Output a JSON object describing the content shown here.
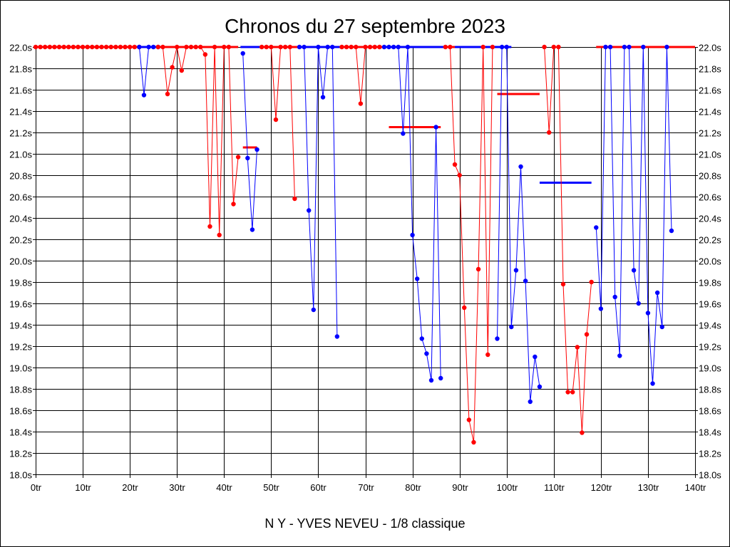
{
  "chart_data": {
    "type": "line",
    "title": "Chronos du 27 septembre 2023",
    "subtitle": "N Y - YVES NEVEU - 1/8 classique",
    "xlim": [
      0,
      140
    ],
    "ylim": [
      18.0,
      22.0
    ],
    "x_tick_step": 10,
    "y_tick_step": 0.2,
    "x_tick_suffix": "tr",
    "y_tick_suffix": "s",
    "grid": true,
    "colors": {
      "red": "#ff0000",
      "blue": "#0000ff",
      "grid": "#000000"
    },
    "series": [
      {
        "color": "red",
        "points": [
          [
            0,
            22.0
          ],
          [
            1,
            22.0
          ],
          [
            2,
            22.0
          ],
          [
            3,
            22.0
          ],
          [
            4,
            22.0
          ],
          [
            5,
            22.0
          ],
          [
            6,
            22.0
          ],
          [
            7,
            22.0
          ],
          [
            8,
            22.0
          ],
          [
            9,
            22.0
          ],
          [
            10,
            22.0
          ],
          [
            11,
            22.0
          ],
          [
            12,
            22.0
          ],
          [
            13,
            22.0
          ],
          [
            14,
            22.0
          ],
          [
            15,
            22.0
          ],
          [
            16,
            22.0
          ],
          [
            17,
            22.0
          ],
          [
            18,
            22.0
          ],
          [
            19,
            22.0
          ],
          [
            20,
            22.0
          ],
          [
            21,
            22.0
          ],
          [
            22,
            22.0
          ]
        ]
      },
      {
        "color": "blue",
        "points": [
          [
            22,
            22.0
          ],
          [
            23,
            21.55
          ],
          [
            24,
            22.0
          ],
          [
            25,
            22.0
          ],
          [
            26,
            22.0
          ]
        ]
      },
      {
        "color": "red",
        "points": [
          [
            26,
            22.0
          ],
          [
            27,
            22.0
          ],
          [
            28,
            21.56
          ],
          [
            29,
            21.81
          ],
          [
            30,
            22.0
          ],
          [
            31,
            21.78
          ],
          [
            32,
            22.0
          ],
          [
            33,
            22.0
          ],
          [
            34,
            22.0
          ],
          [
            35,
            22.0
          ],
          [
            36,
            21.93
          ],
          [
            37,
            20.32
          ],
          [
            38,
            22.0
          ],
          [
            39,
            20.24
          ],
          [
            40,
            22.0
          ],
          [
            41,
            22.0
          ],
          [
            42,
            20.53
          ],
          [
            43,
            20.97
          ]
        ]
      },
      {
        "color": "blue",
        "points": [
          [
            44,
            21.94
          ],
          [
            45,
            20.96
          ],
          [
            46,
            20.29
          ],
          [
            47,
            21.04
          ]
        ]
      },
      {
        "color": "red",
        "points": [
          [
            48,
            22.0
          ],
          [
            49,
            22.0
          ],
          [
            50,
            22.0
          ],
          [
            51,
            21.32
          ],
          [
            52,
            22.0
          ],
          [
            53,
            22.0
          ],
          [
            54,
            22.0
          ],
          [
            55,
            20.58
          ]
        ]
      },
      {
        "color": "blue",
        "points": [
          [
            56,
            22.0
          ],
          [
            57,
            22.0
          ],
          [
            58,
            20.47
          ],
          [
            59,
            19.54
          ],
          [
            60,
            22.0
          ],
          [
            61,
            21.53
          ],
          [
            62,
            22.0
          ],
          [
            63,
            22.0
          ],
          [
            64,
            19.29
          ]
        ]
      },
      {
        "color": "red",
        "points": [
          [
            65,
            22.0
          ],
          [
            66,
            22.0
          ],
          [
            67,
            22.0
          ],
          [
            68,
            22.0
          ],
          [
            69,
            21.47
          ],
          [
            70,
            22.0
          ],
          [
            71,
            22.0
          ],
          [
            72,
            22.0
          ],
          [
            73,
            22.0
          ]
        ]
      },
      {
        "color": "blue",
        "points": [
          [
            74,
            22.0
          ],
          [
            75,
            22.0
          ],
          [
            76,
            22.0
          ],
          [
            77,
            22.0
          ],
          [
            78,
            21.19
          ],
          [
            79,
            22.0
          ],
          [
            80,
            20.24
          ],
          [
            81,
            19.83
          ],
          [
            82,
            19.27
          ],
          [
            83,
            19.13
          ],
          [
            84,
            18.88
          ],
          [
            85,
            21.25
          ],
          [
            86,
            18.9
          ]
        ]
      },
      {
        "color": "red",
        "points": [
          [
            87,
            22.0
          ],
          [
            88,
            22.0
          ],
          [
            89,
            20.9
          ],
          [
            90,
            20.8
          ],
          [
            91,
            19.56
          ],
          [
            92,
            18.51
          ],
          [
            93,
            18.3
          ],
          [
            94,
            19.92
          ],
          [
            95,
            22.0
          ],
          [
            96,
            19.12
          ],
          [
            97,
            22.0
          ]
        ]
      },
      {
        "color": "blue",
        "points": [
          [
            98,
            19.27
          ],
          [
            99,
            22.0
          ],
          [
            100,
            22.0
          ],
          [
            101,
            19.38
          ],
          [
            102,
            19.91
          ],
          [
            103,
            20.88
          ],
          [
            104,
            19.81
          ],
          [
            105,
            18.68
          ],
          [
            106,
            19.1
          ],
          [
            107,
            18.82
          ]
        ]
      },
      {
        "color": "red",
        "points": [
          [
            108,
            22.0
          ],
          [
            109,
            21.2
          ],
          [
            110,
            22.0
          ],
          [
            111,
            22.0
          ],
          [
            112,
            19.78
          ],
          [
            113,
            18.77
          ],
          [
            114,
            18.77
          ],
          [
            115,
            19.19
          ],
          [
            116,
            18.39
          ],
          [
            117,
            19.31
          ],
          [
            118,
            19.8
          ]
        ]
      },
      {
        "color": "blue",
        "points": [
          [
            119,
            20.31
          ],
          [
            120,
            19.55
          ],
          [
            121,
            22.0
          ],
          [
            122,
            22.0
          ],
          [
            123,
            19.66
          ],
          [
            124,
            19.11
          ],
          [
            125,
            22.0
          ],
          [
            126,
            22.0
          ],
          [
            127,
            19.91
          ],
          [
            128,
            19.6
          ],
          [
            129,
            22.0
          ],
          [
            130,
            19.51
          ],
          [
            131,
            18.85
          ],
          [
            132,
            19.7
          ],
          [
            133,
            19.38
          ],
          [
            134,
            22.0
          ],
          [
            135,
            20.28
          ]
        ]
      }
    ],
    "averages": [
      {
        "color": "red",
        "x": [
          0,
          22
        ],
        "y": 22.0
      },
      {
        "color": "blue",
        "x": [
          22,
          26
        ],
        "y": 22.0
      },
      {
        "color": "red",
        "x": [
          26,
          43
        ],
        "y": 22.0
      },
      {
        "color": "blue",
        "x": [
          44,
          43.5
        ],
        "y": 22.0
      },
      {
        "color": "blue",
        "x": [
          43.5,
          48
        ],
        "y": 22.0
      },
      {
        "color": "red",
        "x": [
          44,
          47
        ],
        "y": 21.06
      },
      {
        "color": "red",
        "x": [
          48,
          56
        ],
        "y": 22.0
      },
      {
        "color": "blue",
        "x": [
          56,
          65
        ],
        "y": 22.0
      },
      {
        "color": "red",
        "x": [
          65,
          74
        ],
        "y": 22.0
      },
      {
        "color": "blue",
        "x": [
          74,
          87
        ],
        "y": 22.0
      },
      {
        "color": "red",
        "x": [
          75,
          86
        ],
        "y": 21.25
      },
      {
        "color": "red",
        "x": [
          87,
          89
        ],
        "y": 22.0
      },
      {
        "color": "blue",
        "x": [
          89,
          101
        ],
        "y": 22.0
      },
      {
        "color": "red",
        "x": [
          98,
          107
        ],
        "y": 21.56
      },
      {
        "color": "blue",
        "x": [
          107,
          118
        ],
        "y": 20.73
      },
      {
        "color": "red",
        "x": [
          119,
          140
        ],
        "y": 22.0
      }
    ]
  }
}
